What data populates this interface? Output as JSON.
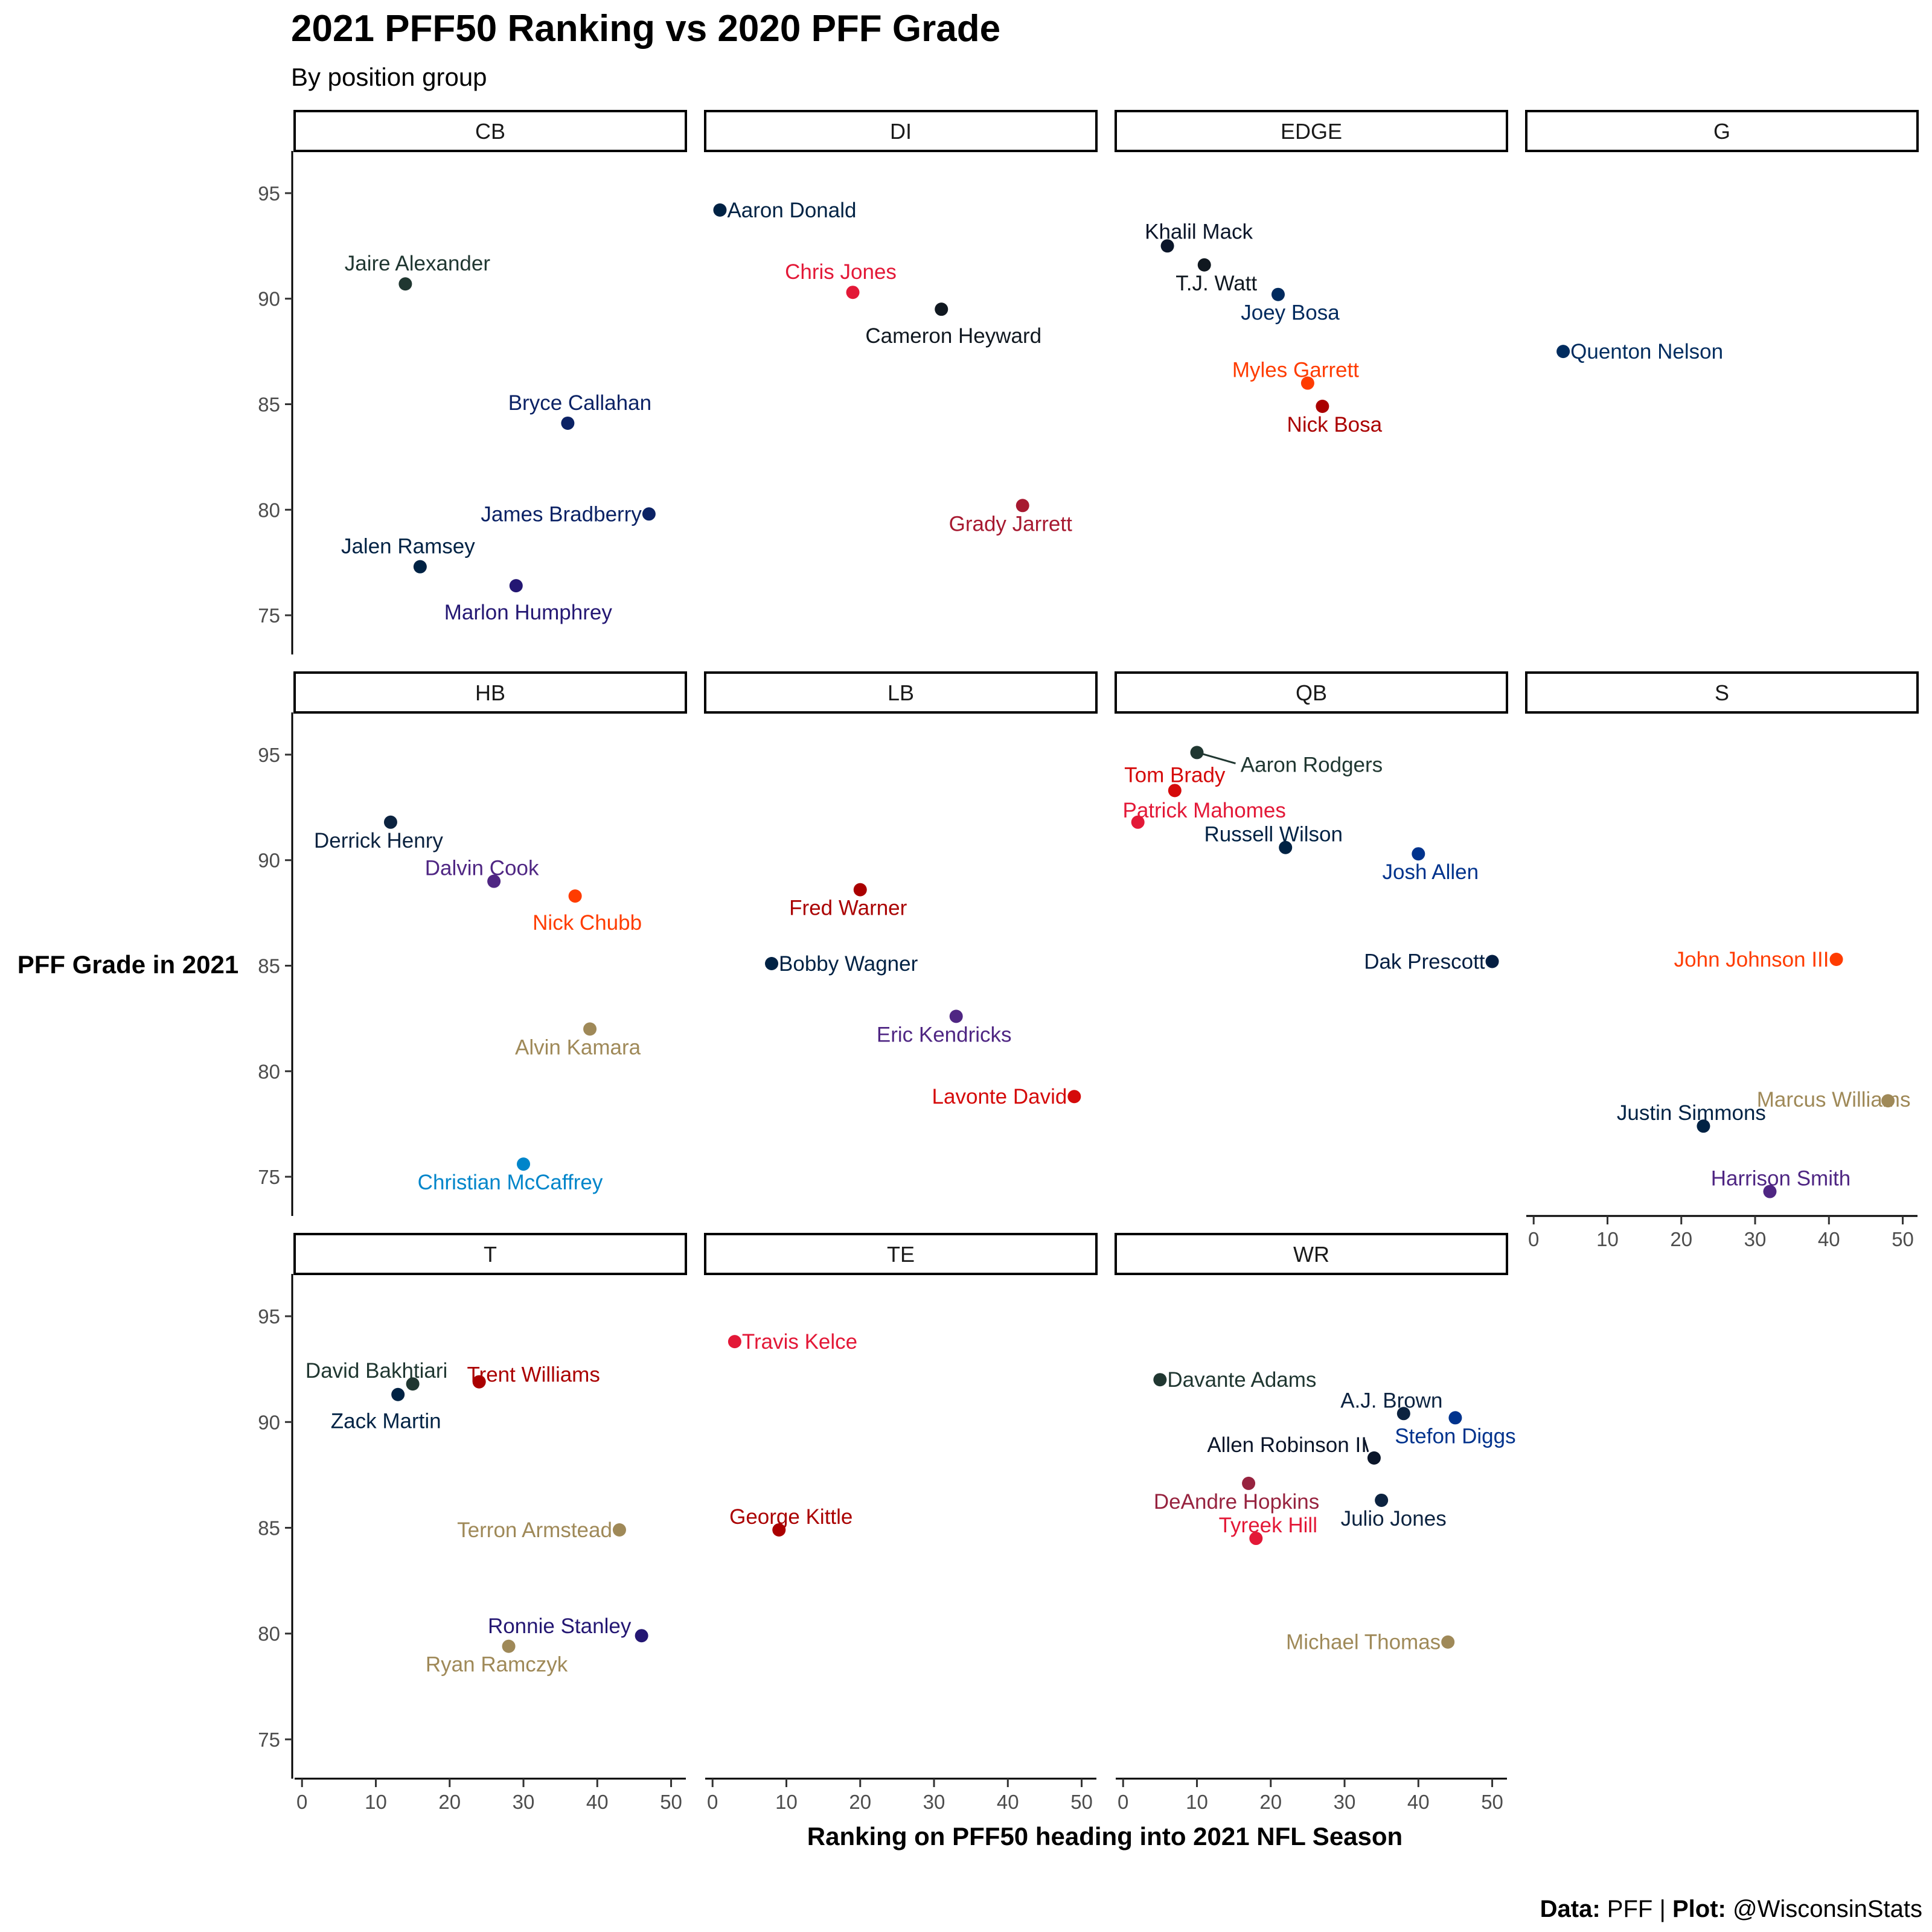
{
  "title": "2021 PFF50 Ranking vs 2020 PFF Grade",
  "subtitle": "By position group",
  "caption": {
    "data_prefix": "Data:",
    "data_source": "PFF",
    "separator": "|",
    "plot_prefix": "Plot:",
    "plot_author": "@WisconsinStats"
  },
  "chart_data": {
    "type": "scatter",
    "faceted": true,
    "facet_by": "position group",
    "xlabel": "Ranking on PFF50 heading into 2021 NFL Season",
    "ylabel": "PFF Grade in 2021",
    "xlim": [
      -1,
      52
    ],
    "ylim": [
      73.2,
      97
    ],
    "x_ticks": [
      0,
      10,
      20,
      30,
      40,
      50
    ],
    "y_ticks": [
      75,
      80,
      85,
      90,
      95
    ],
    "grid": false,
    "legend": "none",
    "facets": [
      {
        "name": "CB",
        "points": [
          {
            "player": "Jaire Alexander",
            "rank": 14,
            "grade": 90.7,
            "color": "#203731"
          },
          {
            "player": "Bryce Callahan",
            "rank": 36,
            "grade": 84.1,
            "color": "#0B2265"
          },
          {
            "player": "James Bradberry",
            "rank": 47,
            "grade": 79.8,
            "color": "#0B2265"
          },
          {
            "player": "Jalen Ramsey",
            "rank": 16,
            "grade": 77.3,
            "color": "#002244"
          },
          {
            "player": "Marlon Humphrey",
            "rank": 29,
            "grade": 76.4,
            "color": "#241773"
          }
        ]
      },
      {
        "name": "DI",
        "points": [
          {
            "player": "Aaron Donald",
            "rank": 1,
            "grade": 94.2,
            "color": "#002244"
          },
          {
            "player": "Chris Jones",
            "rank": 19,
            "grade": 90.3,
            "color": "#E31837"
          },
          {
            "player": "Cameron Heyward",
            "rank": 31,
            "grade": 89.5,
            "color": "#101820"
          },
          {
            "player": "Grady Jarrett",
            "rank": 42,
            "grade": 80.2,
            "color": "#A71930"
          }
        ]
      },
      {
        "name": "EDGE",
        "points": [
          {
            "player": "Khalil Mack",
            "rank": 6,
            "grade": 92.5,
            "color": "#0B162A"
          },
          {
            "player": "T.J. Watt",
            "rank": 11,
            "grade": 91.6,
            "color": "#101820"
          },
          {
            "player": "Joey Bosa",
            "rank": 21,
            "grade": 90.2,
            "color": "#002A5E"
          },
          {
            "player": "Myles Garrett",
            "rank": 25,
            "grade": 86.0,
            "color": "#FF3C00"
          },
          {
            "player": "Nick Bosa",
            "rank": 27,
            "grade": 84.9,
            "color": "#AA0000"
          }
        ]
      },
      {
        "name": "G",
        "points": [
          {
            "player": "Quenton Nelson",
            "rank": 4,
            "grade": 87.5,
            "color": "#002C5F"
          }
        ]
      },
      {
        "name": "HB",
        "points": [
          {
            "player": "Derrick Henry",
            "rank": 12,
            "grade": 91.8,
            "color": "#0C2340"
          },
          {
            "player": "Dalvin Cook",
            "rank": 26,
            "grade": 89.0,
            "color": "#4F2683"
          },
          {
            "player": "Nick Chubb",
            "rank": 37,
            "grade": 88.3,
            "color": "#FF3C00"
          },
          {
            "player": "Alvin Kamara",
            "rank": 39,
            "grade": 82.0,
            "color": "#9F8958"
          },
          {
            "player": "Christian McCaffrey",
            "rank": 30,
            "grade": 75.6,
            "color": "#0085CA"
          }
        ]
      },
      {
        "name": "LB",
        "points": [
          {
            "player": "Fred Warner",
            "rank": 20,
            "grade": 88.6,
            "color": "#AA0000"
          },
          {
            "player": "Bobby Wagner",
            "rank": 8,
            "grade": 85.1,
            "color": "#002244"
          },
          {
            "player": "Eric Kendricks",
            "rank": 33,
            "grade": 82.6,
            "color": "#4F2683"
          },
          {
            "player": "Lavonte David",
            "rank": 49,
            "grade": 78.8,
            "color": "#D50A0A"
          }
        ]
      },
      {
        "name": "QB",
        "points": [
          {
            "player": "Aaron Rodgers",
            "rank": 10,
            "grade": 95.1,
            "color": "#203731"
          },
          {
            "player": "Tom Brady",
            "rank": 7,
            "grade": 93.3,
            "color": "#D50A0A"
          },
          {
            "player": "Patrick Mahomes",
            "rank": 2,
            "grade": 91.8,
            "color": "#E31837"
          },
          {
            "player": "Russell Wilson",
            "rank": 22,
            "grade": 90.6,
            "color": "#002244"
          },
          {
            "player": "Josh Allen",
            "rank": 40,
            "grade": 90.3,
            "color": "#00338D"
          },
          {
            "player": "Dak Prescott",
            "rank": 50,
            "grade": 85.2,
            "color": "#041E42"
          }
        ]
      },
      {
        "name": "S",
        "points": [
          {
            "player": "John Johnson III",
            "rank": 41,
            "grade": 85.3,
            "color": "#FF3C00"
          },
          {
            "player": "Marcus Williams",
            "rank": 48,
            "grade": 78.6,
            "color": "#9F8958"
          },
          {
            "player": "Justin Simmons",
            "rank": 23,
            "grade": 77.4,
            "color": "#002244"
          },
          {
            "player": "Harrison Smith",
            "rank": 32,
            "grade": 74.3,
            "color": "#4F2683"
          }
        ]
      },
      {
        "name": "T",
        "points": [
          {
            "player": "David Bakhtiari",
            "rank": 15,
            "grade": 91.8,
            "color": "#203731"
          },
          {
            "player": "Trent Williams",
            "rank": 24,
            "grade": 91.9,
            "color": "#AA0000"
          },
          {
            "player": "Zack Martin",
            "rank": 13,
            "grade": 91.3,
            "color": "#002244"
          },
          {
            "player": "Terron Armstead",
            "rank": 43,
            "grade": 84.9,
            "color": "#9F8958"
          },
          {
            "player": "Ronnie Stanley",
            "rank": 46,
            "grade": 79.9,
            "color": "#241773"
          },
          {
            "player": "Ryan Ramczyk",
            "rank": 28,
            "grade": 79.4,
            "color": "#9F8958"
          }
        ]
      },
      {
        "name": "TE",
        "points": [
          {
            "player": "Travis Kelce",
            "rank": 3,
            "grade": 93.8,
            "color": "#E31837"
          },
          {
            "player": "George Kittle",
            "rank": 9,
            "grade": 84.9,
            "color": "#AA0000"
          }
        ]
      },
      {
        "name": "WR",
        "points": [
          {
            "player": "Davante Adams",
            "rank": 5,
            "grade": 92.0,
            "color": "#203731"
          },
          {
            "player": "A.J. Brown",
            "rank": 38,
            "grade": 90.4,
            "color": "#0C2340"
          },
          {
            "player": "Stefon Diggs",
            "rank": 45,
            "grade": 90.2,
            "color": "#00338D"
          },
          {
            "player": "Allen Robinson II",
            "rank": 34,
            "grade": 88.3,
            "color": "#0B162A"
          },
          {
            "player": "DeAndre Hopkins",
            "rank": 17,
            "grade": 87.1,
            "color": "#97233F"
          },
          {
            "player": "Julio Jones",
            "rank": 35,
            "grade": 86.3,
            "color": "#0C2340"
          },
          {
            "player": "Tyreek Hill",
            "rank": 18,
            "grade": 84.5,
            "color": "#E31837"
          },
          {
            "player": "Michael Thomas",
            "rank": 44,
            "grade": 79.6,
            "color": "#9F8958"
          }
        ]
      }
    ]
  }
}
